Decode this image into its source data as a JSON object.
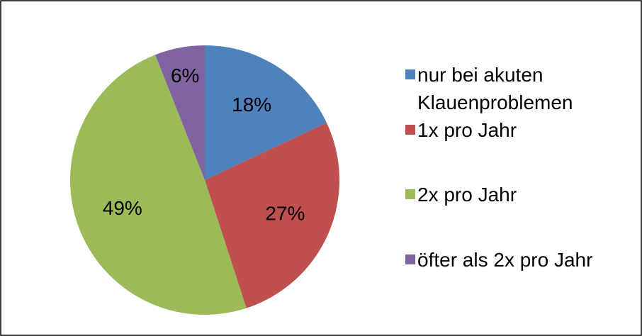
{
  "chart_data": {
    "type": "pie",
    "categories": [
      "nur bei akuten Klauenproblemen",
      "1x pro Jahr",
      "2x pro Jahr",
      "öfter als 2x pro Jahr"
    ],
    "values": [
      18,
      27,
      49,
      6
    ],
    "value_labels": [
      "18%",
      "27%",
      "49%",
      "6%"
    ],
    "colors": [
      "#4f81bd",
      "#c0504d",
      "#9bbb59",
      "#8064a2"
    ],
    "legend": "right"
  }
}
